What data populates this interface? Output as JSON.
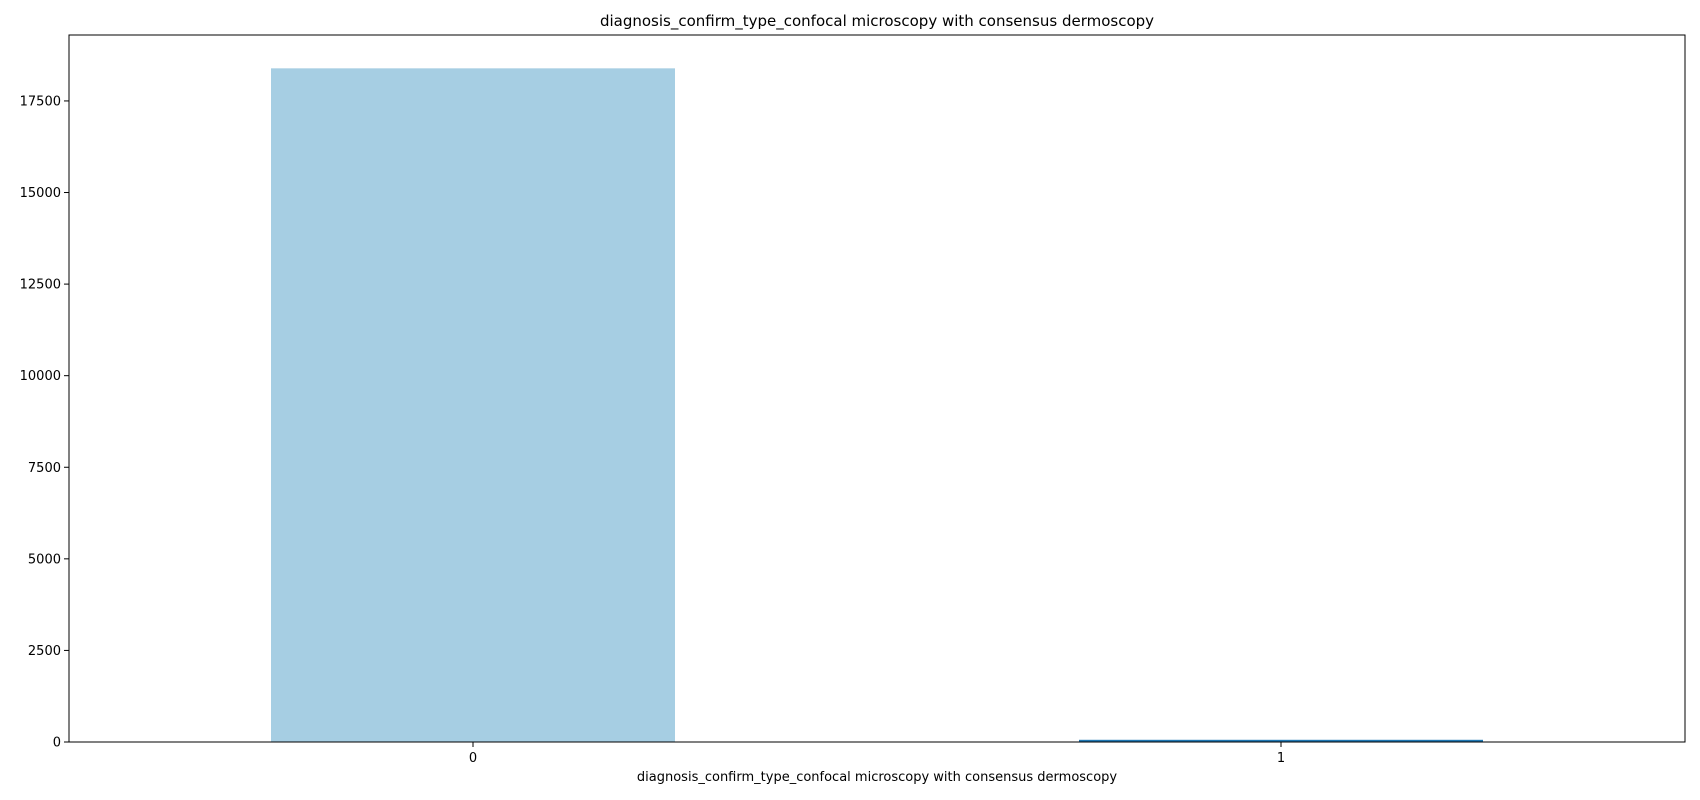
{
  "chart_data": {
    "type": "bar",
    "title": "diagnosis_confirm_type_confocal microscopy with consensus dermoscopy",
    "xlabel": "diagnosis_confirm_type_confocal microscopy with consensus dermoscopy",
    "ylabel": "",
    "categories": [
      "0",
      "1"
    ],
    "values": [
      18390,
      60
    ],
    "colors": [
      "#a6cee3",
      "#1f78b4"
    ],
    "ylim": [
      0,
      19300
    ],
    "yticks": [
      0,
      2500,
      5000,
      7500,
      10000,
      12500,
      15000,
      17500
    ],
    "grid": false,
    "legend": "none"
  }
}
